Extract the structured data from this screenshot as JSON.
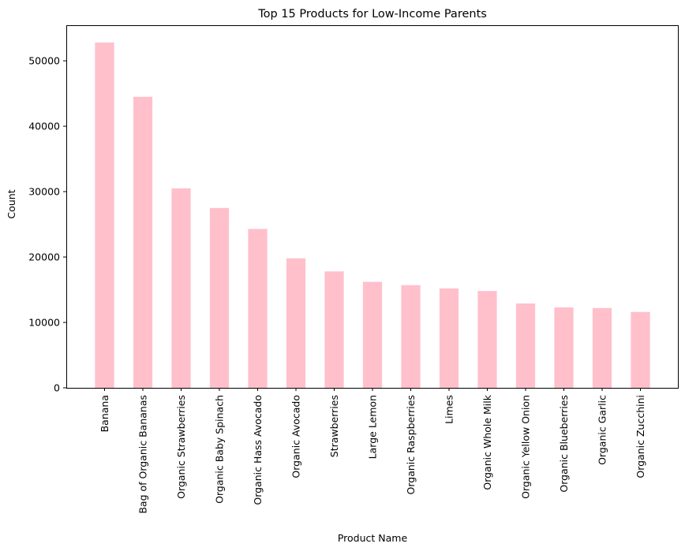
{
  "chart_data": {
    "type": "bar",
    "title": "Top 15 Products for Low-Income Parents",
    "xlabel": "Product Name",
    "ylabel": "Count",
    "categories": [
      "Banana",
      "Bag of Organic Bananas",
      "Organic Strawberries",
      "Organic Baby Spinach",
      "Organic Hass Avocado",
      "Organic Avocado",
      "Strawberries",
      "Large Lemon",
      "Organic Raspberries",
      "Limes",
      "Organic Whole Milk",
      "Organic Yellow Onion",
      "Organic Blueberries",
      "Organic Garlic",
      "Organic Zucchini"
    ],
    "values": [
      52800,
      44500,
      30500,
      27500,
      24300,
      19800,
      17800,
      16200,
      15700,
      15200,
      14800,
      12900,
      12300,
      12200,
      11600
    ],
    "ylim": [
      0,
      55440
    ],
    "yticks": [
      0,
      10000,
      20000,
      30000,
      40000,
      50000
    ],
    "ytick_labels": [
      "0",
      "10000",
      "20000",
      "30000",
      "40000",
      "50000"
    ],
    "bar_color": "#ffc0cb",
    "grid": false,
    "legend": "none"
  }
}
